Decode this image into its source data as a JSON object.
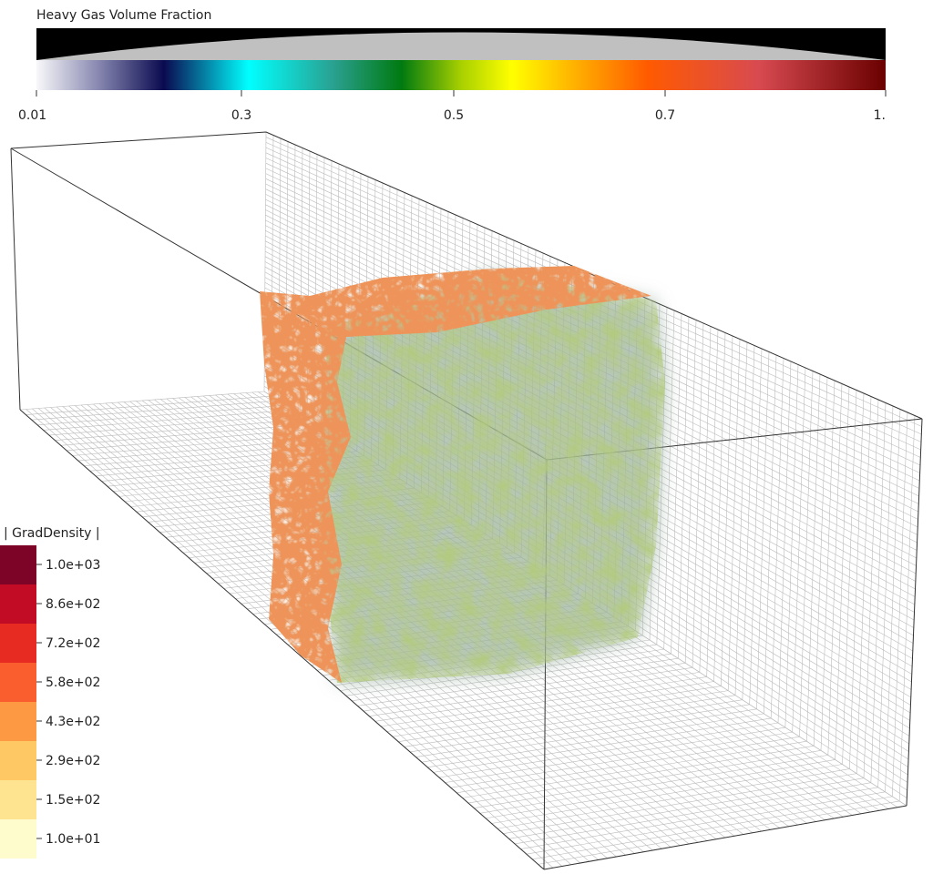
{
  "colorbar": {
    "title": "Heavy Gas Volume Fraction",
    "ticks": [
      "0.01",
      "0.3",
      "0.5",
      "0.7",
      "1."
    ]
  },
  "legend": {
    "title": "| GradDensity |",
    "entries": [
      {
        "label": "1.0e+03",
        "color": "#7d0327"
      },
      {
        "label": "8.6e+02",
        "color": "#c20b25"
      },
      {
        "label": "7.2e+02",
        "color": "#e72a22"
      },
      {
        "label": "5.8e+02",
        "color": "#fa5d2e"
      },
      {
        "label": "4.3e+02",
        "color": "#fd9943"
      },
      {
        "label": "2.9e+02",
        "color": "#fec865"
      },
      {
        "label": "1.5e+02",
        "color": "#fee391"
      },
      {
        "label": "1.0e+01",
        "color": "#fefbcd"
      }
    ]
  }
}
